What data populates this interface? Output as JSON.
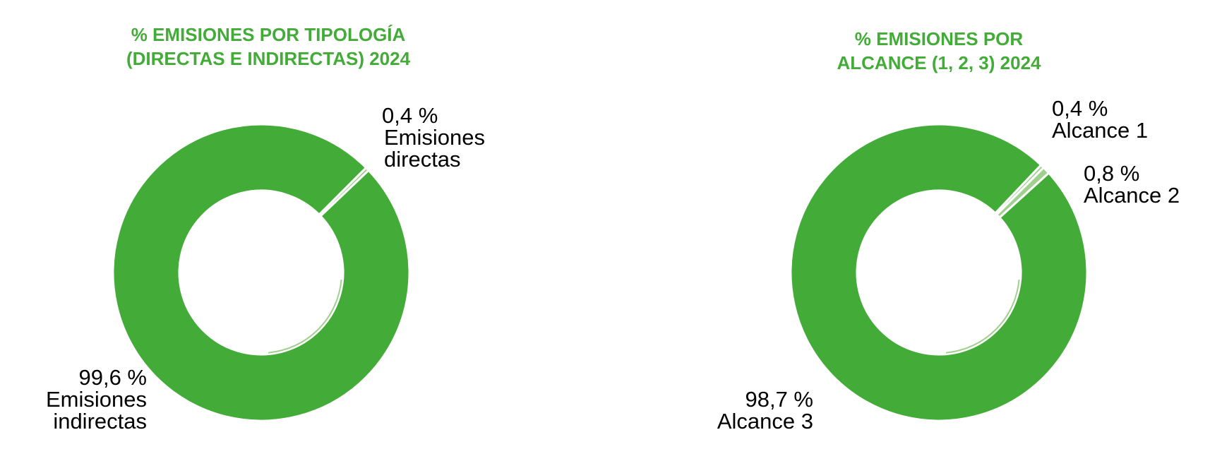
{
  "colors": {
    "title": "#43ac38",
    "main": "#43ac38",
    "light": "#9fd08e",
    "separator": "#ffffff"
  },
  "chart_data": [
    {
      "type": "pie",
      "title": "% EMISIONES POR TIPOLOGÍA\n(DIRECTAS E INDIRECTAS) 2024",
      "slices": [
        {
          "name": "Emisiones directas",
          "value": 0.4,
          "value_label": "0,4 %",
          "color": "#9fd08e"
        },
        {
          "name": "Emisiones indirectas",
          "value": 99.6,
          "value_label": "99,6 %",
          "color": "#43ac38"
        }
      ]
    },
    {
      "type": "pie",
      "title": "% EMISIONES POR\nALCANCE (1, 2, 3) 2024",
      "slices": [
        {
          "name": "Alcance 1",
          "value": 0.4,
          "value_label": "0,4 %",
          "color": "#9fd08e"
        },
        {
          "name": "Alcance 2",
          "value": 0.8,
          "value_label": "0,8 %",
          "color": "#9fd08e"
        },
        {
          "name": "Alcance 3",
          "value": 98.7,
          "value_label": "98,7 %",
          "color": "#43ac38"
        }
      ]
    }
  ]
}
